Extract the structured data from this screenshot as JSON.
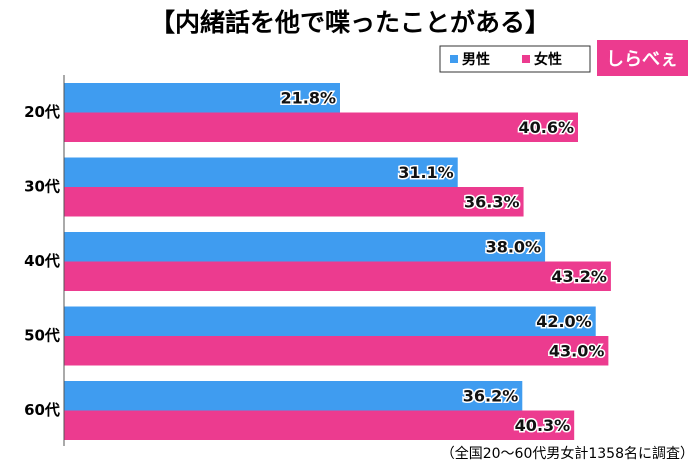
{
  "chart_data": {
    "type": "barh",
    "title": "【内緒話を他で喋ったことがある】",
    "categories": [
      "20代",
      "30代",
      "40代",
      "50代",
      "60代"
    ],
    "series": [
      {
        "name": "男性",
        "color": "#3f9cf0",
        "values": [
          21.8,
          31.1,
          38.0,
          42.0,
          36.2
        ],
        "value_labels": [
          "21.8%",
          "31.1%",
          "38.0%",
          "42.0%",
          "36.2%"
        ]
      },
      {
        "name": "女性",
        "color": "#ec3b8f",
        "values": [
          40.6,
          36.3,
          43.2,
          43.0,
          40.3
        ],
        "value_labels": [
          "40.6%",
          "36.3%",
          "43.2%",
          "43.0%",
          "40.3%"
        ]
      }
    ],
    "xlim": [
      0,
      50
    ],
    "note": "（全国20～60代男女計1358名に調査）"
  },
  "logo": "しらべぇ"
}
